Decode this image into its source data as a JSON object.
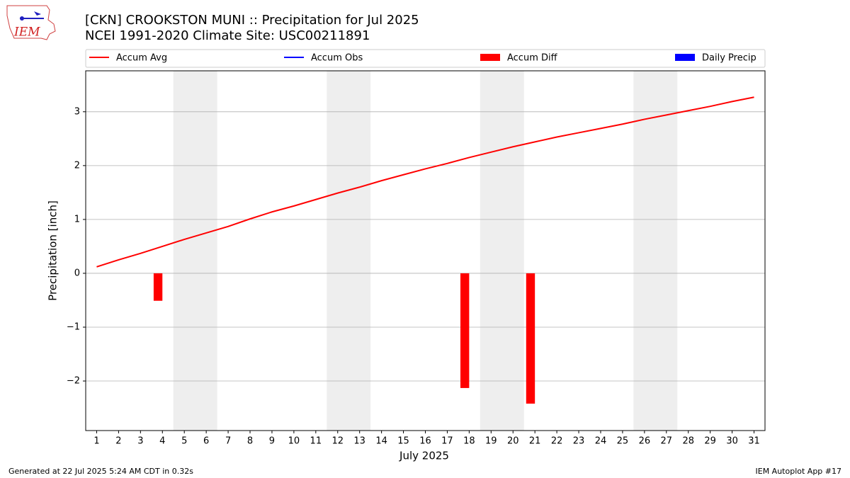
{
  "logo_text": "IEM",
  "footer_left": "Generated at 22 Jul 2025 5:24 AM CDT in 0.32s",
  "footer_right": "IEM Autoplot App #17",
  "chart_data": {
    "type": "line",
    "title": "[CKN] CROOKSTON MUNI :: Precipitation for Jul 2025",
    "subtitle": "NCEI 1991-2020 Climate Site: USC00211891",
    "xlabel": "July 2025",
    "ylabel": "Precipitation [inch]",
    "xlim": [
      0.5,
      31.5
    ],
    "xticks": [
      1,
      2,
      3,
      4,
      5,
      6,
      7,
      8,
      9,
      10,
      11,
      12,
      13,
      14,
      15,
      16,
      17,
      18,
      19,
      20,
      21,
      22,
      23,
      24,
      25,
      26,
      27,
      28,
      29,
      30,
      31
    ],
    "ylim": [
      -2.92,
      3.76
    ],
    "yticks": [
      {
        "value": -2,
        "label": "−2"
      },
      {
        "value": -1,
        "label": "−1"
      },
      0,
      1,
      2,
      3
    ],
    "grid": true,
    "shaded_x_ranges": [
      [
        4.5,
        6.5
      ],
      [
        11.5,
        13.5
      ],
      [
        18.5,
        20.5
      ],
      [
        25.5,
        27.5
      ]
    ],
    "shade_color": "#eeeeee",
    "series": [
      {
        "name": "Accum Avg",
        "type": "line",
        "color": "#ff0000",
        "x": [
          1,
          2,
          3,
          4,
          5,
          6,
          7,
          8,
          9,
          10,
          11,
          12,
          13,
          14,
          15,
          16,
          17,
          18,
          19,
          20,
          21,
          22,
          23,
          24,
          25,
          26,
          27,
          28,
          29,
          30,
          31
        ],
        "values": [
          0.12,
          0.25,
          0.37,
          0.5,
          0.63,
          0.75,
          0.87,
          1.01,
          1.14,
          1.25,
          1.37,
          1.49,
          1.6,
          1.72,
          1.83,
          1.94,
          2.04,
          2.15,
          2.25,
          2.35,
          2.44,
          2.53,
          2.61,
          2.69,
          2.77,
          2.86,
          2.94,
          3.02,
          3.1,
          3.19,
          3.27
        ]
      },
      {
        "name": "Accum Obs",
        "type": "line",
        "color": "#0000ff",
        "x": [],
        "values": []
      },
      {
        "name": "Accum Diff",
        "type": "bar",
        "color": "#ff0000",
        "x": [
          4,
          18,
          21
        ],
        "values": [
          -0.51,
          -2.13,
          -2.42
        ]
      },
      {
        "name": "Daily Precip",
        "type": "bar",
        "color": "#0000ff",
        "x": [],
        "values": []
      }
    ]
  }
}
